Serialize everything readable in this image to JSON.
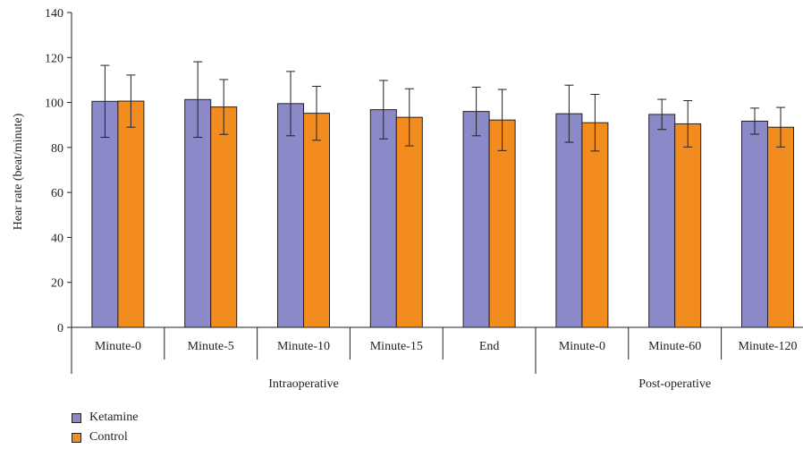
{
  "chart_data": {
    "type": "bar",
    "ylabel": "Hear rate (beat/minute)",
    "xlabel": "",
    "ylim": [
      0,
      140
    ],
    "yticks": [
      0,
      20,
      40,
      60,
      80,
      100,
      120,
      140
    ],
    "categories": [
      "Minute-0",
      "Minute-5",
      "Minute-10",
      "Minute-15",
      "End",
      "Minute-0",
      "Minute-60",
      "Minute-120"
    ],
    "groups": [
      {
        "label": "Intraoperative",
        "span": [
          0,
          4
        ]
      },
      {
        "label": "Post-operative",
        "span": [
          5,
          7
        ]
      }
    ],
    "series": [
      {
        "name": "Ketamine",
        "color": "#8b89c7",
        "values": [
          100.5,
          101.3,
          99.5,
          96.8,
          96.0,
          95.0,
          94.7,
          91.7
        ],
        "errors": [
          16.0,
          16.8,
          14.3,
          13.0,
          10.8,
          12.7,
          6.7,
          5.8
        ]
      },
      {
        "name": "Control",
        "color": "#f28c1f",
        "values": [
          100.6,
          98.0,
          95.2,
          93.4,
          92.2,
          91.0,
          90.5,
          89.0
        ],
        "errors": [
          11.6,
          12.2,
          12.0,
          12.7,
          13.6,
          12.6,
          10.3,
          8.8
        ]
      }
    ],
    "legend_position": "bottom-left",
    "grid": false
  }
}
